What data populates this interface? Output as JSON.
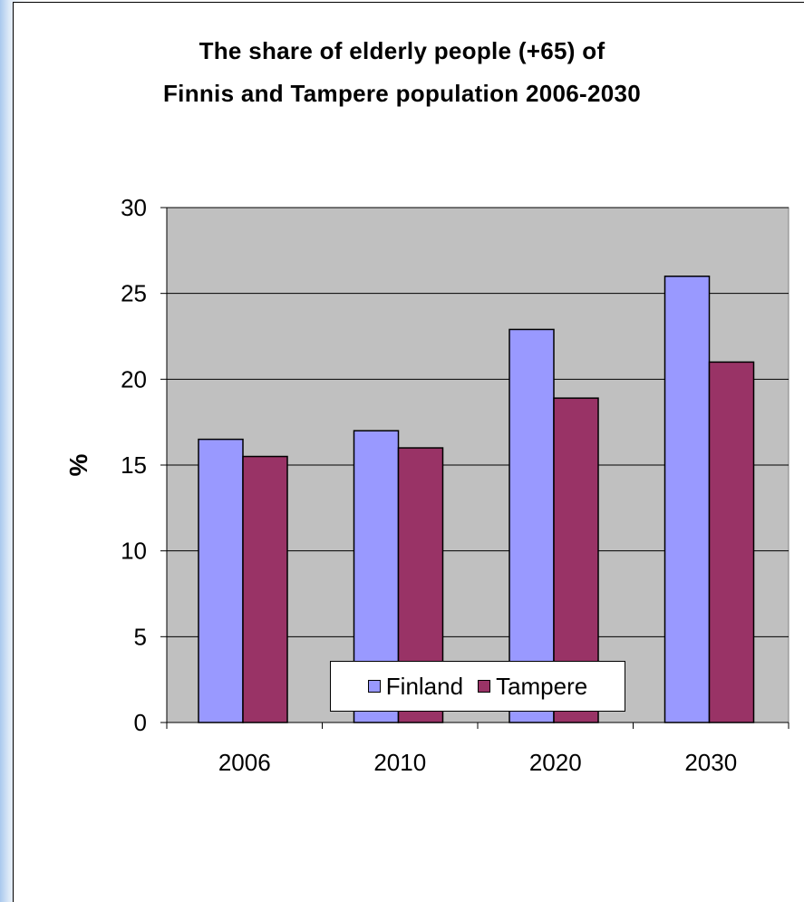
{
  "chart_data": {
    "type": "bar",
    "title": "The share of elderly people (+65) of Finnis and Tampere population 2006-2030",
    "title_lines": [
      "The share of elderly people (+65) of",
      "Finnis and Tampere population 2006-2030"
    ],
    "xlabel": "",
    "ylabel": "%",
    "ylim": [
      0,
      30
    ],
    "yticks": [
      "0",
      "5",
      "10",
      "15",
      "20",
      "25",
      "30"
    ],
    "categories": [
      "2006",
      "2010",
      "2020",
      "2030"
    ],
    "series": [
      {
        "name": "Finland",
        "values": [
          16.5,
          17.0,
          22.9,
          26.0
        ],
        "color": "#9999ff"
      },
      {
        "name": "Tampere",
        "values": [
          15.5,
          16.0,
          18.9,
          21.0
        ],
        "color": "#993366"
      }
    ],
    "plot_background": "#c0c0c0",
    "grid": true,
    "legend_position": "bottom"
  }
}
